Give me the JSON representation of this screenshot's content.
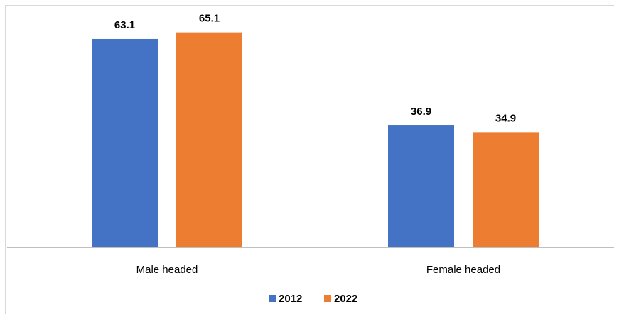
{
  "chart_data": {
    "type": "bar",
    "title": "",
    "xlabel": "",
    "ylabel": "",
    "categories": [
      "Male headed",
      "Female headed"
    ],
    "series": [
      {
        "name": "2012",
        "values": [
          63.1,
          36.9
        ],
        "color": "#4472C4"
      },
      {
        "name": "2022",
        "values": [
          65.1,
          34.9
        ],
        "color": "#ED7D31"
      }
    ],
    "ylim": [
      0,
      70
    ],
    "grid": false,
    "legend": "bottom",
    "axis_color": "#bfbfbf"
  }
}
